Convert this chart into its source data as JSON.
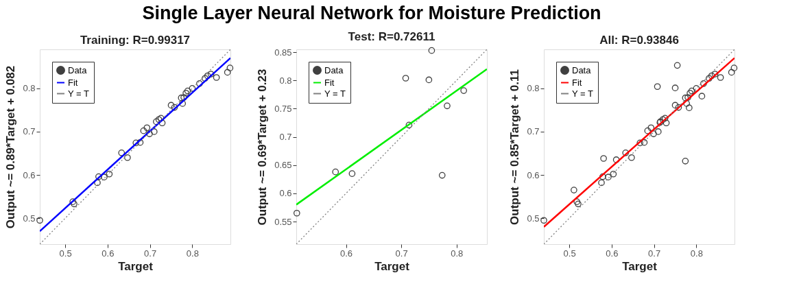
{
  "chart_data": [
    {
      "type": "scatter",
      "title": "Training: R=0.99317",
      "xlabel": "Target",
      "ylabel": "Output ~= 0.89*Target + 0.082",
      "annotations": [
        "Single Layer Neural Network for Moisture Prediction"
      ],
      "xlim": [
        0.44,
        0.89
      ],
      "ylim": [
        0.44,
        0.89
      ],
      "xticks": [
        0.5,
        0.6,
        0.7,
        0.8
      ],
      "yticks": [
        0.5,
        0.6,
        0.7,
        0.8
      ],
      "grid": false,
      "legend": "top left",
      "series": [
        {
          "name": "Data",
          "marker": "circle",
          "color": "#404040",
          "x": [
            0.44,
            0.518,
            0.521,
            0.576,
            0.579,
            0.592,
            0.604,
            0.633,
            0.647,
            0.667,
            0.677,
            0.685,
            0.693,
            0.699,
            0.71,
            0.715,
            0.721,
            0.726,
            0.729,
            0.75,
            0.758,
            0.777,
            0.774,
            0.78,
            0.785,
            0.789,
            0.8,
            0.817,
            0.83,
            0.836,
            0.844,
            0.857,
            0.883,
            0.889
          ],
          "values": [
            0.495,
            0.538,
            0.533,
            0.582,
            0.596,
            0.595,
            0.602,
            0.651,
            0.64,
            0.674,
            0.675,
            0.702,
            0.709,
            0.695,
            0.7,
            0.723,
            0.728,
            0.731,
            0.72,
            0.761,
            0.756,
            0.765,
            0.778,
            0.779,
            0.789,
            0.794,
            0.8,
            0.811,
            0.823,
            0.829,
            0.833,
            0.825,
            0.837,
            0.847
          ]
        },
        {
          "name": "Fit",
          "type": "line",
          "color": "#0000ff",
          "x": [
            0.44,
            0.89
          ],
          "values": [
            0.47,
            0.87
          ]
        },
        {
          "name": "Y = T",
          "type": "line",
          "line_style": "dotted",
          "color": "#808080",
          "x": [
            0.44,
            0.89
          ],
          "values": [
            0.44,
            0.89
          ]
        }
      ]
    },
    {
      "type": "scatter",
      "title": "Test: R=0.72611",
      "xlabel": "Target",
      "ylabel": "Output ~= 0.69*Target + 0.23",
      "xlim": [
        0.51,
        0.855
      ],
      "ylim": [
        0.51,
        0.855
      ],
      "xticks": [
        0.6,
        0.7,
        0.8
      ],
      "yticks": [
        0.55,
        0.6,
        0.65,
        0.7,
        0.75,
        0.8,
        0.85
      ],
      "grid": false,
      "legend": "top left",
      "series": [
        {
          "name": "Data",
          "marker": "circle",
          "color": "#404040",
          "x": [
            0.511,
            0.581,
            0.611,
            0.708,
            0.714,
            0.75,
            0.755,
            0.774,
            0.783,
            0.813
          ],
          "values": [
            0.565,
            0.638,
            0.635,
            0.804,
            0.721,
            0.801,
            0.853,
            0.632,
            0.755,
            0.782
          ]
        },
        {
          "name": "Fit",
          "type": "line",
          "color": "#00ee00",
          "x": [
            0.51,
            0.855
          ],
          "values": [
            0.58,
            0.82
          ]
        },
        {
          "name": "Y = T",
          "type": "line",
          "line_style": "dotted",
          "color": "#808080",
          "x": [
            0.51,
            0.855
          ],
          "values": [
            0.51,
            0.855
          ]
        }
      ]
    },
    {
      "type": "scatter",
      "title": "All: R=0.93846",
      "xlabel": "Target",
      "ylabel": "Output ~= 0.85*Target + 0.11",
      "xlim": [
        0.44,
        0.89
      ],
      "ylim": [
        0.44,
        0.89
      ],
      "xticks": [
        0.5,
        0.6,
        0.7,
        0.8
      ],
      "yticks": [
        0.5,
        0.6,
        0.7,
        0.8
      ],
      "grid": false,
      "legend": "top left",
      "series": [
        {
          "name": "Data",
          "marker": "circle",
          "color": "#404040",
          "x": [
            0.44,
            0.518,
            0.521,
            0.576,
            0.579,
            0.592,
            0.604,
            0.633,
            0.647,
            0.667,
            0.677,
            0.685,
            0.693,
            0.699,
            0.71,
            0.715,
            0.721,
            0.726,
            0.729,
            0.75,
            0.758,
            0.777,
            0.774,
            0.78,
            0.785,
            0.789,
            0.8,
            0.817,
            0.83,
            0.836,
            0.844,
            0.857,
            0.883,
            0.889,
            0.511,
            0.581,
            0.611,
            0.708,
            0.714,
            0.75,
            0.755,
            0.774,
            0.783,
            0.813
          ],
          "values": [
            0.495,
            0.538,
            0.533,
            0.582,
            0.596,
            0.595,
            0.602,
            0.651,
            0.64,
            0.674,
            0.675,
            0.702,
            0.709,
            0.695,
            0.7,
            0.723,
            0.728,
            0.731,
            0.72,
            0.761,
            0.756,
            0.765,
            0.778,
            0.779,
            0.789,
            0.794,
            0.8,
            0.811,
            0.823,
            0.829,
            0.833,
            0.825,
            0.837,
            0.847,
            0.565,
            0.638,
            0.635,
            0.804,
            0.721,
            0.801,
            0.853,
            0.632,
            0.755,
            0.782
          ]
        },
        {
          "name": "Fit",
          "type": "line",
          "color": "#ff0000",
          "x": [
            0.44,
            0.89
          ],
          "values": [
            0.48,
            0.87
          ]
        },
        {
          "name": "Y = T",
          "type": "line",
          "line_style": "dotted",
          "color": "#808080",
          "x": [
            0.44,
            0.89
          ],
          "values": [
            0.44,
            0.89
          ]
        }
      ]
    }
  ]
}
